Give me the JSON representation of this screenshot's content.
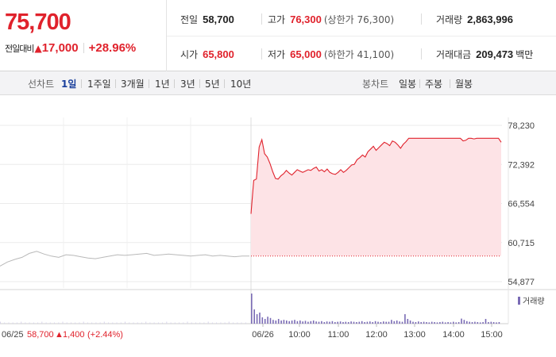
{
  "quote": {
    "current_price": "75,700",
    "change_label": "전일대비",
    "change_icon": "up-triangle-icon",
    "change_value": "17,000",
    "change_pct": "+28.96%",
    "prev_close_label": "전일",
    "prev_close": "58,700",
    "high_label": "고가",
    "high": "76,300",
    "upper_limit": "(상한가 76,300)",
    "volume_label": "거래량",
    "volume": "2,863,996",
    "open_label": "시가",
    "open": "65,800",
    "low_label": "저가",
    "low": "65,000",
    "lower_limit": "(하한가 41,100)",
    "trade_value_label": "거래대금",
    "trade_value": "209,473",
    "trade_value_unit": "백만"
  },
  "tabs": {
    "line_label": "선차트",
    "line_tabs": [
      "1일",
      "1주일",
      "3개월",
      "1년",
      "3년",
      "5년",
      "10년"
    ],
    "active": "1일",
    "candle_label": "봉차트",
    "candle_tabs": [
      "일봉",
      "주봉",
      "월봉"
    ]
  },
  "colors": {
    "up": "#e0222c",
    "accent": "#1a3f9c",
    "volume": "#7a6bb5",
    "fill": "#fde3e6"
  },
  "chart_data": {
    "type": "line",
    "y_ticks": [
      "78,230",
      "72,392",
      "66,554",
      "60,715",
      "54,877"
    ],
    "ylim": [
      54877,
      78230
    ],
    "reference_line": 58700,
    "legend": "거래량",
    "x_labels": [
      "06/26",
      "10:00",
      "11:00",
      "12:00",
      "13:00",
      "14:00",
      "15:00"
    ],
    "prev_day": {
      "date": "06/25",
      "close": "58,700",
      "change": "1,400",
      "change_pct": "(+2.44%)"
    },
    "prev_series": [
      57200,
      57800,
      58200,
      58500,
      59100,
      59400,
      59000,
      58700,
      58500,
      58900,
      58800,
      58600,
      58400,
      58300,
      58500,
      58700,
      58900,
      58800,
      58900,
      59000,
      59100,
      58800,
      58900,
      59000,
      58900,
      58800,
      58700,
      58800,
      58900,
      58700,
      58800,
      58700,
      58600,
      58700,
      58700
    ],
    "today_series": [
      65000,
      70000,
      70200,
      75000,
      76100,
      74000,
      73500,
      72500,
      71300,
      70300,
      70200,
      70700,
      71000,
      71500,
      71100,
      70800,
      71200,
      71600,
      71400,
      71200,
      71400,
      71600,
      71500,
      71800,
      72000,
      71400,
      71600,
      71300,
      71700,
      71200,
      71000,
      70900,
      71200,
      71600,
      71200,
      71500,
      71900,
      72300,
      72400,
      73100,
      73400,
      73800,
      73500,
      74300,
      74700,
      75100,
      74500,
      74900,
      75300,
      75700,
      75500,
      75200,
      75900,
      75700,
      75300,
      74800,
      75400,
      75800,
      76300,
      76300,
      76300,
      76300,
      76300,
      76300,
      76300,
      76300,
      76300,
      76300,
      76300,
      76300,
      76300,
      76300,
      76300,
      76300,
      76300,
      76300,
      76300,
      76300,
      75900,
      76000,
      76300,
      76300,
      76200,
      76300,
      76300,
      76300,
      76300,
      76300,
      76300,
      76300,
      76300,
      76300,
      75700
    ],
    "today_volume": [
      0.95,
      0.45,
      0.3,
      0.35,
      0.2,
      0.15,
      0.22,
      0.18,
      0.12,
      0.1,
      0.15,
      0.1,
      0.12,
      0.1,
      0.08,
      0.1,
      0.12,
      0.08,
      0.1,
      0.07,
      0.09,
      0.06,
      0.08,
      0.1,
      0.07,
      0.06,
      0.08,
      0.05,
      0.07,
      0.06,
      0.08,
      0.05,
      0.06,
      0.07,
      0.05,
      0.06,
      0.05,
      0.07,
      0.06,
      0.05,
      0.06,
      0.08,
      0.05,
      0.06,
      0.07,
      0.05,
      0.08,
      0.06,
      0.05,
      0.07,
      0.06,
      0.06,
      0.12,
      0.08,
      0.1,
      0.07,
      0.06,
      0.3,
      0.15,
      0.1,
      0.06,
      0.05,
      0.07,
      0.05,
      0.06,
      0.05,
      0.04,
      0.06,
      0.05,
      0.04,
      0.05,
      0.06,
      0.04,
      0.05,
      0.04,
      0.06,
      0.04,
      0.05,
      0.16,
      0.12,
      0.08,
      0.06,
      0.05,
      0.06,
      0.05,
      0.04,
      0.05,
      0.15,
      0.05,
      0.06,
      0.05,
      0.04,
      0.05
    ]
  }
}
